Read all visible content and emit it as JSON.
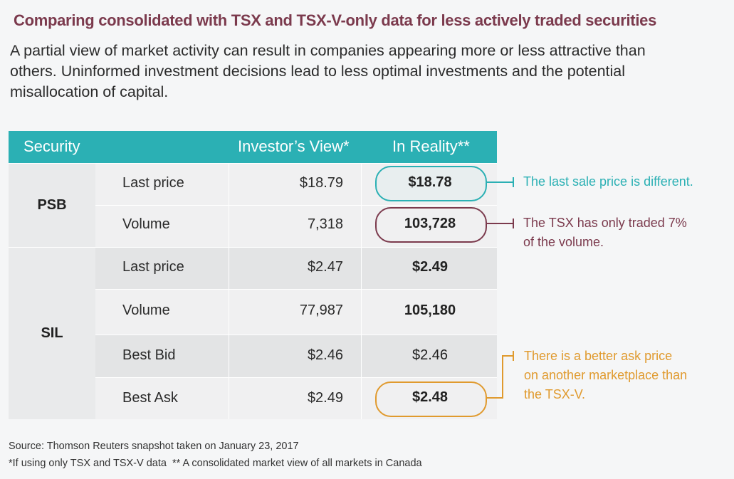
{
  "title": "Comparing consolidated with TSX and TSX-V-only data for less actively traded securities",
  "intro": "A partial view of market activity can result in companies appearing more or less attractive than others. Uninformed investment decisions lead to less optimal investments and the potential misallocation of capital.",
  "table": {
    "headers": {
      "security": "Security",
      "view": "Investor’s View*",
      "reality": "In Reality**"
    },
    "groups": [
      {
        "security": "PSB",
        "rows": [
          {
            "label": "Last price",
            "view": "$18.79",
            "reality": "$18.78"
          },
          {
            "label": "Volume",
            "view": "7,318",
            "reality": "103,728"
          }
        ]
      },
      {
        "security": "SIL",
        "rows": [
          {
            "label": "Last price",
            "view": "$2.47",
            "reality": "$2.49"
          },
          {
            "label": "Volume",
            "view": "77,987",
            "reality": "105,180"
          },
          {
            "label": "Best Bid",
            "view": "$2.46",
            "reality": "$2.46"
          },
          {
            "label": "Best Ask",
            "view": "$2.49",
            "reality": "$2.48"
          }
        ]
      }
    ]
  },
  "notes": {
    "price": "The last sale price is different.",
    "volume_1": "The TSX has only traded 7%",
    "volume_2": "of the volume.",
    "ask_1": "There is a better ask price",
    "ask_2": "on another marketplace than",
    "ask_3": "the TSX-V."
  },
  "footer": {
    "source": "Source: Thomson Reuters snapshot taken on January 23, 2017",
    "footnote": "*If using only TSX and TSX-V data  ** A consolidated market view of all markets in Canada"
  },
  "colors": {
    "header": "#2bb0b4",
    "title": "#7b3a4d",
    "teal_note": "#2bb0b4",
    "maroon_note": "#7b3a4d",
    "orange_note": "#e09a2e",
    "row_light": "#f0f0f1",
    "row_dark": "#e3e4e5"
  }
}
